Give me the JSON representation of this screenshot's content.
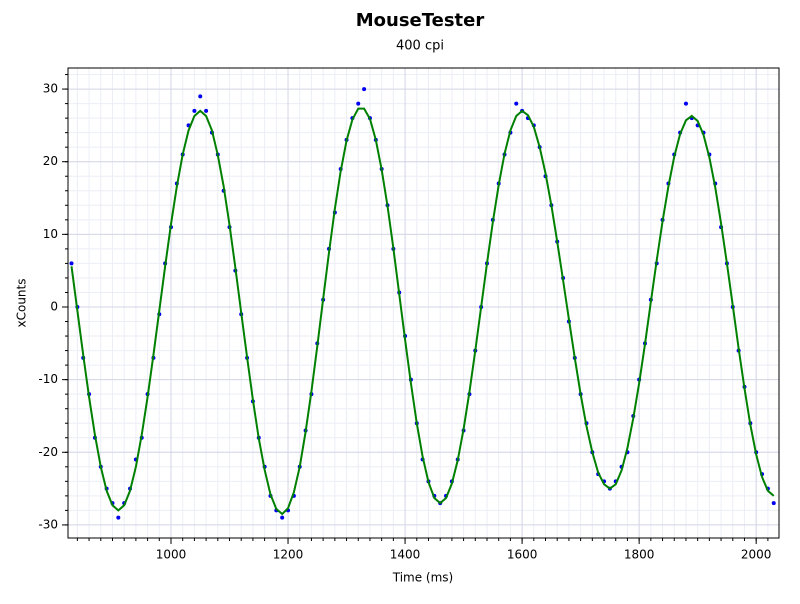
{
  "chart_data": {
    "type": "scatter",
    "title": "MouseTester",
    "subtitle": "400 cpi",
    "x_label": "Time (ms)",
    "y_label": "xCounts",
    "xlim": [
      824,
      2039
    ],
    "ylim": [
      -31.8,
      32.9
    ],
    "xticks": [
      1000,
      1200,
      1400,
      1600,
      1800,
      2000
    ],
    "yticks": [
      -30,
      -20,
      -10,
      0,
      10,
      20,
      30
    ],
    "x_minor_step": 20,
    "y_minor_step": 2,
    "grid": true,
    "x": [
      830,
      840,
      850,
      860,
      870,
      880,
      890,
      900,
      910,
      920,
      930,
      940,
      950,
      960,
      970,
      980,
      990,
      1000,
      1010,
      1020,
      1030,
      1040,
      1050,
      1060,
      1070,
      1080,
      1090,
      1100,
      1110,
      1120,
      1130,
      1140,
      1150,
      1160,
      1170,
      1180,
      1190,
      1200,
      1210,
      1220,
      1230,
      1240,
      1250,
      1260,
      1270,
      1280,
      1290,
      1300,
      1310,
      1320,
      1330,
      1340,
      1350,
      1360,
      1370,
      1380,
      1390,
      1400,
      1410,
      1420,
      1430,
      1440,
      1450,
      1460,
      1470,
      1480,
      1490,
      1500,
      1510,
      1520,
      1530,
      1540,
      1550,
      1560,
      1570,
      1580,
      1590,
      1600,
      1610,
      1620,
      1630,
      1640,
      1650,
      1660,
      1670,
      1680,
      1690,
      1700,
      1710,
      1720,
      1730,
      1740,
      1750,
      1760,
      1770,
      1780,
      1790,
      1800,
      1810,
      1820,
      1830,
      1840,
      1850,
      1860,
      1870,
      1880,
      1890,
      1900,
      1910,
      1920,
      1930,
      1940,
      1950,
      1960,
      1970,
      1980,
      1990,
      2000,
      2010,
      2020,
      2030
    ],
    "series": [
      {
        "type": "scatter",
        "color": "#0000ee",
        "values": [
          6,
          0,
          -7,
          -12,
          -18,
          -22,
          -25,
          -27,
          -29,
          -27,
          -25,
          -21,
          -18,
          -12,
          -7,
          -1,
          6,
          11,
          17,
          21,
          25,
          27,
          29,
          27,
          24,
          21,
          16,
          11,
          5,
          -1,
          -7,
          -13,
          -18,
          -22,
          -26,
          -28,
          -29,
          -28,
          -26,
          -22,
          -17,
          -12,
          -5,
          1,
          8,
          13,
          19,
          23,
          26,
          28,
          30,
          26,
          23,
          19,
          14,
          8,
          2,
          -4,
          -10,
          -16,
          -21,
          -24,
          -26,
          -27,
          -26,
          -24,
          -21,
          -17,
          -12,
          -6,
          0,
          6,
          12,
          17,
          21,
          24,
          28,
          27,
          26,
          25,
          22,
          18,
          14,
          9,
          4,
          -2,
          -7,
          -12,
          -16,
          -20,
          -23,
          -24,
          -25,
          -24,
          -22,
          -20,
          -15,
          -10,
          -5,
          1,
          6,
          12,
          17,
          21,
          24,
          28,
          26,
          25,
          24,
          21,
          17,
          11,
          6,
          0,
          -6,
          -11,
          -16,
          -20,
          -23,
          -25,
          -27
        ]
      },
      {
        "type": "line",
        "color": "#008000",
        "values": [
          5.6,
          -0.5,
          -6.6,
          -12.4,
          -17.6,
          -22.0,
          -25.3,
          -27.3,
          -28.0,
          -27.3,
          -25.3,
          -22.0,
          -17.6,
          -12.4,
          -6.6,
          -0.5,
          5.6,
          11.4,
          16.6,
          21.0,
          24.3,
          26.3,
          27.0,
          26.3,
          24.3,
          20.9,
          16.6,
          11.3,
          5.4,
          -0.8,
          -6.9,
          -12.8,
          -18.1,
          -22.4,
          -25.8,
          -27.8,
          -28.5,
          -27.7,
          -25.5,
          -22.0,
          -17.2,
          -11.6,
          -5.4,
          1.1,
          7.5,
          13.5,
          18.7,
          22.9,
          25.8,
          27.3,
          27.3,
          25.9,
          23.0,
          18.9,
          13.9,
          8.1,
          1.8,
          -4.5,
          -10.5,
          -16.0,
          -20.6,
          -24.1,
          -26.3,
          -27.0,
          -26.3,
          -24.3,
          -21.1,
          -16.8,
          -11.7,
          -6.0,
          0,
          6.0,
          11.7,
          16.8,
          21.1,
          24.3,
          26.3,
          27.0,
          26.4,
          24.8,
          22.0,
          18.4,
          14.0,
          9.0,
          3.7,
          -1.7,
          -7.0,
          -12.0,
          -16.4,
          -20.0,
          -22.8,
          -24.4,
          -25.0,
          -24.4,
          -22.5,
          -19.4,
          -15.3,
          -10.5,
          -5.1,
          0.7,
          6.4,
          11.8,
          16.6,
          20.7,
          23.8,
          25.7,
          26.3,
          25.6,
          23.7,
          20.6,
          16.5,
          11.5,
          6.0,
          0.2,
          -5.7,
          -11.2,
          -16.2,
          -20.3,
          -23.4,
          -25.3,
          -26.0
        ]
      }
    ]
  }
}
